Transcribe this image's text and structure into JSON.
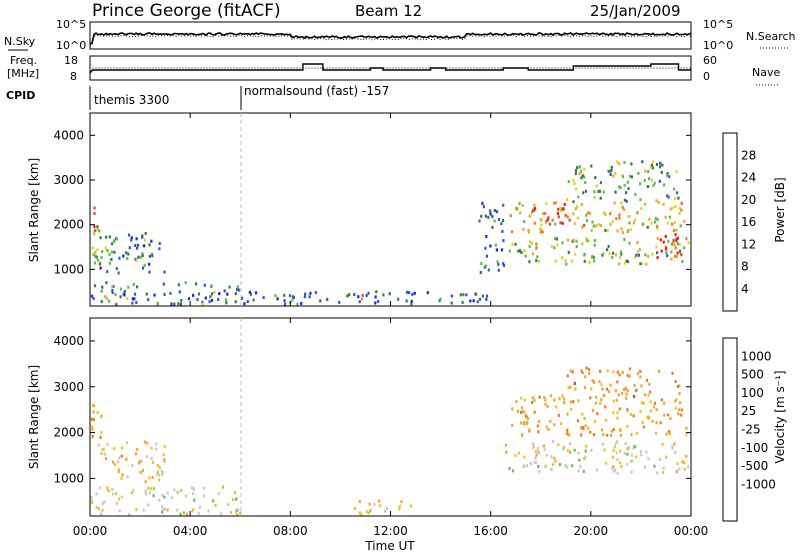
{
  "header": {
    "station": "Prince George (fitACF)",
    "beam": "Beam 12",
    "date": "25/Jan/2009"
  },
  "top_panels": {
    "nsky_label": "N.Sky",
    "nsky_ticks": [
      "10^5",
      "10^0"
    ],
    "nsearch_label": "N.Search",
    "nsearch_ticks": [
      "10^5",
      "10^0"
    ],
    "freq_label_1": "Freq.",
    "freq_label_2": "[MHz]",
    "freq_ticks": [
      "18",
      "8"
    ],
    "nave_label": "Nave",
    "nave_ticks": [
      "60",
      "0"
    ],
    "cpid_label": "CPID",
    "cpid_segments": [
      {
        "label": "themis 3300",
        "start_hour": 0
      },
      {
        "label": "normalsound (fast) -157",
        "start_hour": 6
      }
    ]
  },
  "x_axis": {
    "label": "Time UT",
    "ticks": [
      "00:00",
      "04:00",
      "08:00",
      "12:00",
      "16:00",
      "20:00",
      "00:00"
    ],
    "range_hours": [
      0,
      24
    ]
  },
  "colors": {
    "power_scale": [
      "#1a1aff",
      "#2a58c8",
      "#2e7d4a",
      "#56c04a",
      "#e6d21e",
      "#f5a42a",
      "#f07820",
      "#ee4a1e",
      "#e81c1c"
    ],
    "velocity_scale": [
      "#1c2fb4",
      "#2f62c0",
      "#2e8a55",
      "#5cc74a",
      "#c9c9c0",
      "#f2c31f",
      "#f5a52a",
      "#f07a20",
      "#e63a1a",
      "#e01212"
    ],
    "ground_scatter": "#c8c8c0"
  },
  "chart_data": [
    {
      "type": "heatmap",
      "title": "Power",
      "ylabel": "Slant Range [km]",
      "xlabel": "",
      "ylim": [
        180,
        4500
      ],
      "yticks": [
        1000,
        2000,
        3000,
        4000
      ],
      "colorbar": {
        "label": "Power [dB]",
        "range": [
          0,
          32
        ],
        "ticks": [
          "4",
          "8",
          "12",
          "16",
          "20",
          "24",
          "28"
        ]
      },
      "regions": [
        {
          "t": [
            0.0,
            0.2
          ],
          "r": [
            1700,
            2500
          ],
          "value": 26
        },
        {
          "t": [
            0.0,
            0.6
          ],
          "r": [
            1000,
            2000
          ],
          "value": 14
        },
        {
          "t": [
            0.1,
            3.0
          ],
          "r": [
            900,
            1800
          ],
          "value": 8
        },
        {
          "t": [
            0.0,
            6.0
          ],
          "r": [
            200,
            700
          ],
          "value": 7
        },
        {
          "t": [
            0.2,
            1.5
          ],
          "r": [
            300,
            600
          ],
          "value": 12
        },
        {
          "t": [
            6.0,
            16.0
          ],
          "r": [
            200,
            500
          ],
          "value": 6
        },
        {
          "t": [
            10.8,
            11.2
          ],
          "r": [
            300,
            500
          ],
          "value": 28
        },
        {
          "t": [
            16.7,
            23.8
          ],
          "r": [
            1800,
            2500
          ],
          "value": 18
        },
        {
          "t": [
            17.5,
            19.2
          ],
          "r": [
            2000,
            2500
          ],
          "value": 26
        },
        {
          "t": [
            16.5,
            23.9
          ],
          "r": [
            1100,
            1700
          ],
          "value": 14
        },
        {
          "t": [
            22.6,
            23.9
          ],
          "r": [
            1200,
            1800
          ],
          "value": 26
        },
        {
          "t": [
            19.0,
            23.5
          ],
          "r": [
            2500,
            3400
          ],
          "value": 12
        },
        {
          "t": [
            15.5,
            16.5
          ],
          "r": [
            900,
            2500
          ],
          "value": 6
        }
      ]
    },
    {
      "type": "heatmap",
      "title": "Velocity",
      "ylabel": "Slant Range [km]",
      "xlabel": "Time UT",
      "ylim": [
        180,
        4500
      ],
      "yticks": [
        1000,
        2000,
        3000,
        4000
      ],
      "colorbar": {
        "label": "Velocity [m s⁻¹]",
        "ticks": [
          "1000",
          "500",
          "100",
          "25",
          "-25",
          "-100",
          "-500",
          "-1000"
        ]
      },
      "regions": [
        {
          "t": [
            0.0,
            0.5
          ],
          "r": [
            1500,
            2600
          ],
          "value": -300
        },
        {
          "t": [
            0.2,
            3.0
          ],
          "r": [
            900,
            1800
          ],
          "value": -100
        },
        {
          "t": [
            0.0,
            6.0
          ],
          "r": [
            200,
            800
          ],
          "value": 0
        },
        {
          "t": [
            10.5,
            13.0
          ],
          "r": [
            200,
            500
          ],
          "value": -100
        },
        {
          "t": [
            16.8,
            23.8
          ],
          "r": [
            1900,
            2800
          ],
          "value": -300
        },
        {
          "t": [
            16.5,
            23.9
          ],
          "r": [
            1100,
            1800
          ],
          "value": 0
        },
        {
          "t": [
            19.0,
            23.5
          ],
          "r": [
            2800,
            3400
          ],
          "value": -300
        }
      ]
    }
  ]
}
